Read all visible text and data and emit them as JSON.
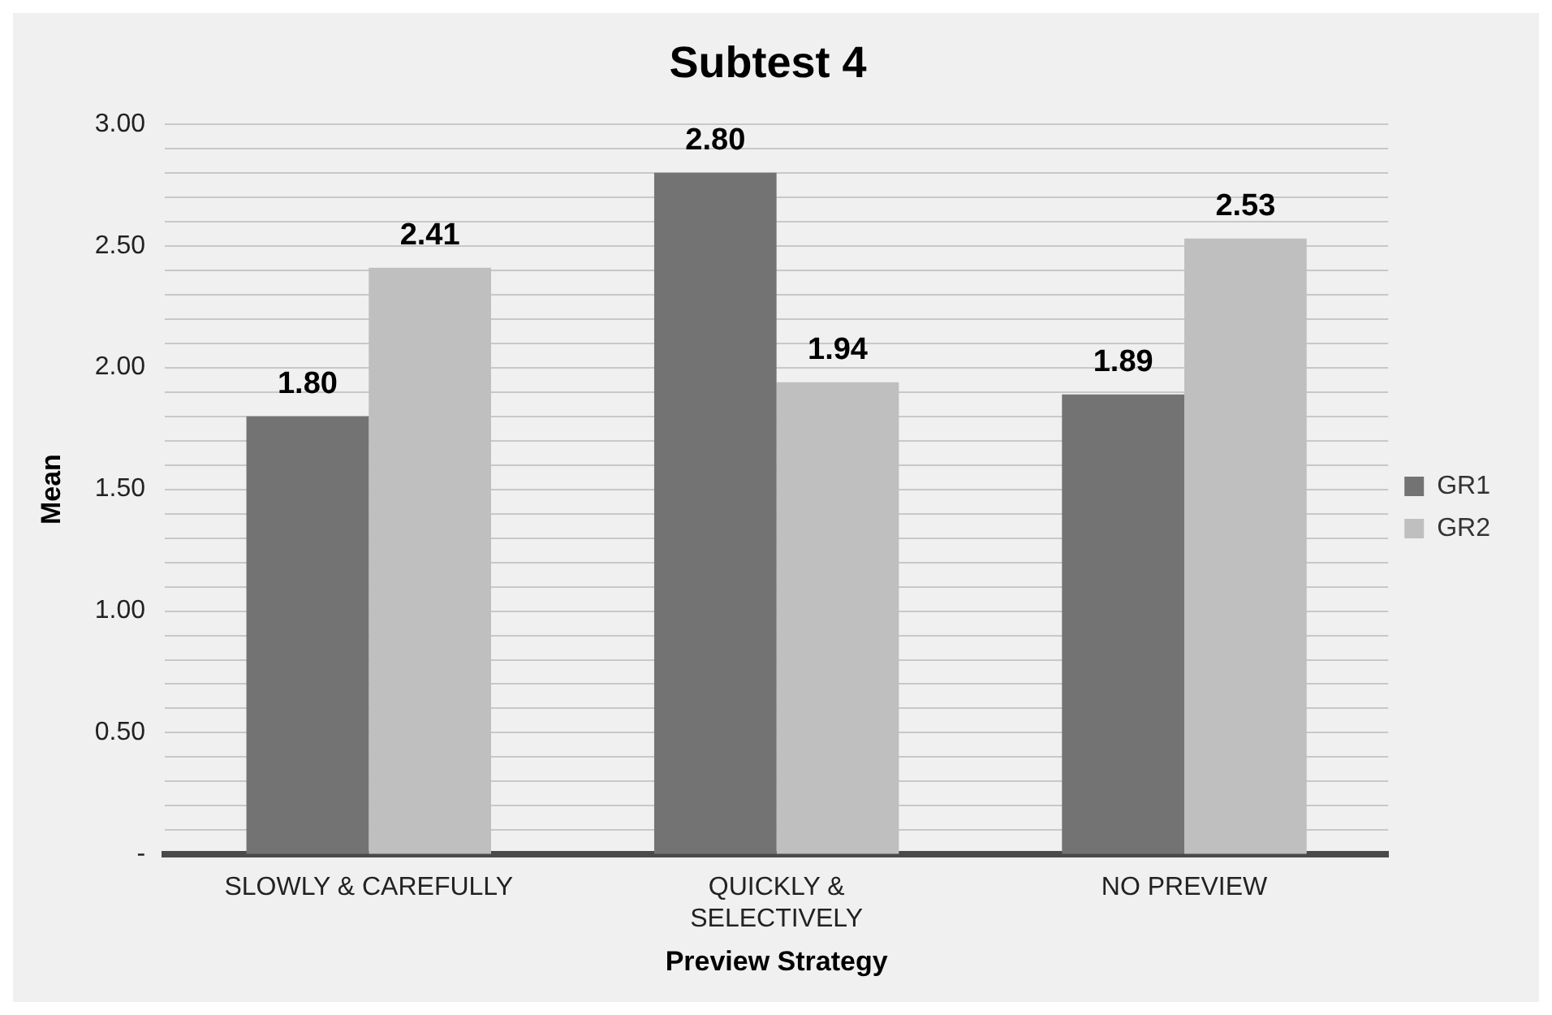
{
  "chart_data": {
    "type": "bar",
    "title": "Subtest 4",
    "xlabel": "Preview Strategy",
    "ylabel": "Mean",
    "categories": [
      "SLOWLY & CAREFULLY",
      "QUICKLY & SELECTIVELY",
      "NO PREVIEW"
    ],
    "series": [
      {
        "name": "GR1",
        "color": "#737373",
        "values": [
          1.8,
          2.8,
          1.89
        ],
        "value_labels": [
          "1.80",
          "2.80",
          "1.89"
        ]
      },
      {
        "name": "GR2",
        "color": "#bfbfbf",
        "values": [
          2.41,
          1.94,
          2.53
        ],
        "value_labels": [
          "2.41",
          "1.94",
          "2.53"
        ]
      }
    ],
    "ylim": [
      0,
      3
    ],
    "yticks": [
      {
        "value": 0,
        "label": "-"
      },
      {
        "value": 0.1,
        "label": null
      },
      {
        "value": 0.2,
        "label": null
      },
      {
        "value": 0.3,
        "label": null
      },
      {
        "value": 0.4,
        "label": null
      },
      {
        "value": 0.5,
        "label": "0.50"
      },
      {
        "value": 0.6,
        "label": null
      },
      {
        "value": 0.7,
        "label": null
      },
      {
        "value": 0.8,
        "label": null
      },
      {
        "value": 0.9,
        "label": null
      },
      {
        "value": 1,
        "label": "1.00"
      },
      {
        "value": 1.1,
        "label": null
      },
      {
        "value": 1.2,
        "label": null
      },
      {
        "value": 1.3,
        "label": null
      },
      {
        "value": 1.4,
        "label": null
      },
      {
        "value": 1.5,
        "label": "1.50"
      },
      {
        "value": 1.6,
        "label": null
      },
      {
        "value": 1.7,
        "label": null
      },
      {
        "value": 1.8,
        "label": null
      },
      {
        "value": 1.9,
        "label": null
      },
      {
        "value": 2,
        "label": "2.00"
      },
      {
        "value": 2.1,
        "label": null
      },
      {
        "value": 2.2,
        "label": null
      },
      {
        "value": 2.3,
        "label": null
      },
      {
        "value": 2.4,
        "label": null
      },
      {
        "value": 2.5,
        "label": "2.50"
      },
      {
        "value": 2.6,
        "label": null
      },
      {
        "value": 2.7,
        "label": null
      },
      {
        "value": 2.8,
        "label": null
      },
      {
        "value": 2.9,
        "label": null
      },
      {
        "value": 3,
        "label": "3.00"
      }
    ],
    "grid": "y",
    "legend": "right"
  }
}
